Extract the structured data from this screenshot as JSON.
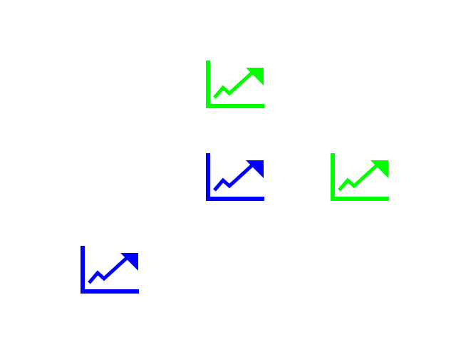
{
  "icons": [
    {
      "name": "trending-up-chart-icon",
      "color": "#00ff00"
    },
    {
      "name": "trending-up-chart-icon",
      "color": "#0000ff"
    },
    {
      "name": "trending-up-chart-icon",
      "color": "#00ff00"
    },
    {
      "name": "trending-up-chart-icon",
      "color": "#0000ff"
    }
  ]
}
